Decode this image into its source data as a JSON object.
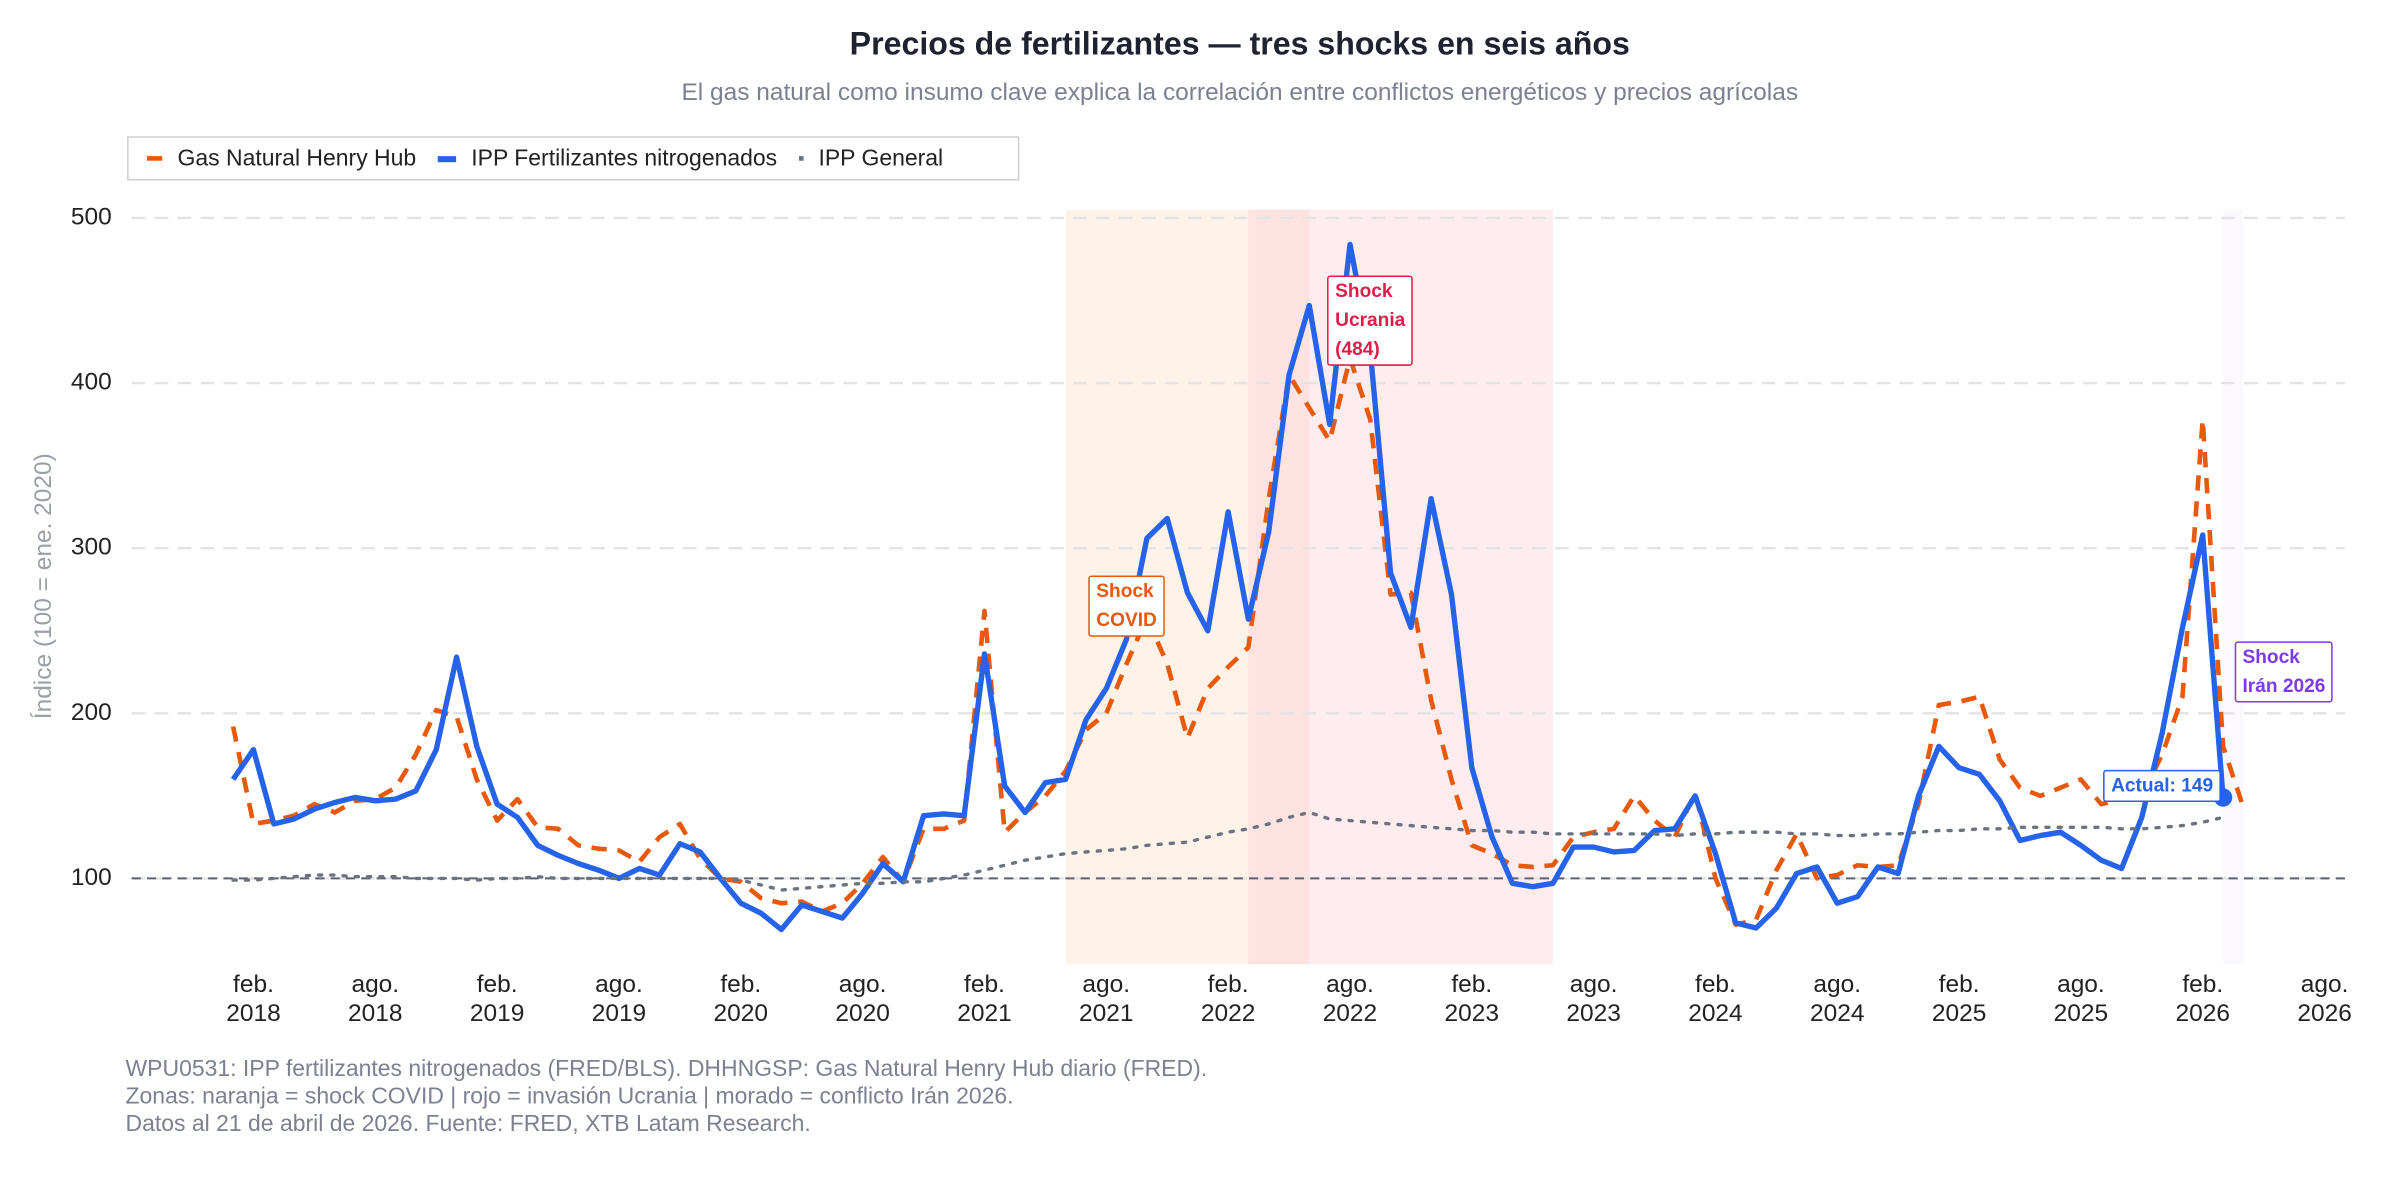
{
  "chart_data": {
    "type": "line",
    "title": "Precios de fertilizantes — tres shocks en seis años",
    "subtitle": "El gas natural como insumo clave explica la correlación entre conflictos energéticos y precios agrícolas",
    "y_label": "Índice (100 = ene. 2020)",
    "x": [
      "2018-01",
      "2018-02",
      "2018-03",
      "2018-04",
      "2018-05",
      "2018-06",
      "2018-07",
      "2018-08",
      "2018-09",
      "2018-10",
      "2018-11",
      "2018-12",
      "2019-01",
      "2019-02",
      "2019-03",
      "2019-04",
      "2019-05",
      "2019-06",
      "2019-07",
      "2019-08",
      "2019-09",
      "2019-10",
      "2019-11",
      "2019-12",
      "2020-01",
      "2020-02",
      "2020-03",
      "2020-04",
      "2020-05",
      "2020-06",
      "2020-07",
      "2020-08",
      "2020-09",
      "2020-10",
      "2020-11",
      "2020-12",
      "2021-01",
      "2021-02",
      "2021-03",
      "2021-04",
      "2021-05",
      "2021-06",
      "2021-07",
      "2021-08",
      "2021-09",
      "2021-10",
      "2021-11",
      "2021-12",
      "2022-01",
      "2022-02",
      "2022-03",
      "2022-04",
      "2022-05",
      "2022-06",
      "2022-07",
      "2022-08",
      "2022-09",
      "2022-10",
      "2022-11",
      "2022-12",
      "2023-01",
      "2023-02",
      "2023-03",
      "2023-04",
      "2023-05",
      "2023-06",
      "2023-07",
      "2023-08",
      "2023-09",
      "2023-10",
      "2023-11",
      "2023-12",
      "2024-01",
      "2024-02",
      "2024-03",
      "2024-04",
      "2024-05",
      "2024-06",
      "2024-07",
      "2024-08",
      "2024-09",
      "2024-10",
      "2024-11",
      "2024-12",
      "2025-01",
      "2025-02",
      "2025-03",
      "2025-04",
      "2025-05",
      "2025-06",
      "2025-07",
      "2025-08",
      "2025-09",
      "2025-10",
      "2025-11",
      "2025-12",
      "2026-01",
      "2026-02",
      "2026-03",
      "2026-04"
    ],
    "series": [
      {
        "name": "Gas Natural Henry Hub",
        "color": "#e8590c",
        "style": "dashed",
        "values": [
          192,
          133,
          135,
          138,
          145,
          140,
          147,
          148,
          155,
          175,
          202,
          198,
          160,
          135,
          148,
          131,
          130,
          120,
          118,
          117,
          110,
          125,
          133,
          112,
          100,
          98,
          88,
          85,
          86,
          80,
          85,
          97,
          113,
          98,
          130,
          130,
          135,
          262,
          128,
          140,
          150,
          165,
          190,
          200,
          230,
          258,
          230,
          185,
          215,
          228,
          240,
          330,
          405,
          385,
          365,
          415,
          378,
          272,
          273,
          208,
          160,
          120,
          115,
          108,
          107,
          108,
          125,
          128,
          130,
          150,
          135,
          125,
          152,
          100,
          72,
          75,
          105,
          127,
          100,
          102,
          108,
          107,
          108,
          145,
          205,
          207,
          210,
          172,
          155,
          150,
          155,
          160,
          145,
          148,
          150,
          175,
          210,
          378,
          180,
          143
        ]
      },
      {
        "name": "IPP Fertilizantes nitrogenados",
        "color": "#2563eb",
        "style": "solid",
        "end_marker": true,
        "values": [
          160,
          178,
          133,
          136,
          142,
          146,
          149,
          147,
          148,
          153,
          178,
          234,
          180,
          145,
          137,
          120,
          114,
          109,
          105,
          100,
          106,
          102,
          121,
          116,
          100,
          85,
          79,
          69,
          84,
          80,
          76,
          91,
          109,
          98,
          138,
          139,
          138,
          236,
          156,
          140,
          158,
          160,
          196,
          215,
          245,
          306,
          318,
          273,
          250,
          322,
          257,
          310,
          405,
          447,
          375,
          484,
          420,
          285,
          252,
          330,
          272,
          167,
          125,
          97,
          95,
          97,
          119,
          119,
          116,
          117,
          129,
          130,
          150,
          115,
          73,
          70,
          82,
          103,
          107,
          85,
          89,
          107,
          103,
          150,
          180,
          167,
          163,
          147,
          123,
          126,
          128,
          120,
          111,
          106,
          137,
          188,
          252,
          308,
          149,
          null
        ]
      },
      {
        "name": "IPP General",
        "color": "#6b7280",
        "style": "dotted",
        "values": [
          99,
          99,
          100,
          101,
          102,
          102,
          101,
          101,
          101,
          100,
          100,
          100,
          99,
          100,
          100,
          101,
          100,
          100,
          100,
          100,
          100,
          100,
          100,
          100,
          100,
          99,
          96,
          93,
          94,
          95,
          96,
          97,
          97,
          98,
          98,
          100,
          102,
          105,
          108,
          111,
          113,
          115,
          116,
          117,
          118,
          120,
          121,
          122,
          125,
          128,
          130,
          133,
          137,
          140,
          136,
          135,
          134,
          133,
          132,
          131,
          130,
          129,
          129,
          128,
          128,
          127,
          127,
          127,
          127,
          127,
          127,
          126,
          127,
          127,
          128,
          128,
          128,
          127,
          127,
          126,
          126,
          127,
          127,
          128,
          129,
          129,
          130,
          130,
          131,
          131,
          131,
          131,
          131,
          130,
          130,
          131,
          132,
          134,
          137,
          null
        ]
      }
    ],
    "xlim": [
      "2017-08",
      "2026-09"
    ],
    "xticks": [
      {
        "value": "2018-02",
        "label": "feb.\n2018"
      },
      {
        "value": "2018-08",
        "label": "ago.\n2018"
      },
      {
        "value": "2019-02",
        "label": "feb.\n2019"
      },
      {
        "value": "2019-08",
        "label": "ago.\n2019"
      },
      {
        "value": "2020-02",
        "label": "feb.\n2020"
      },
      {
        "value": "2020-08",
        "label": "ago.\n2020"
      },
      {
        "value": "2021-02",
        "label": "feb.\n2021"
      },
      {
        "value": "2021-08",
        "label": "ago.\n2021"
      },
      {
        "value": "2022-02",
        "label": "feb.\n2022"
      },
      {
        "value": "2022-08",
        "label": "ago.\n2022"
      },
      {
        "value": "2023-02",
        "label": "feb.\n2023"
      },
      {
        "value": "2023-08",
        "label": "ago.\n2023"
      },
      {
        "value": "2024-02",
        "label": "feb.\n2024"
      },
      {
        "value": "2024-08",
        "label": "ago.\n2024"
      },
      {
        "value": "2025-02",
        "label": "feb.\n2025"
      },
      {
        "value": "2025-08",
        "label": "ago.\n2025"
      },
      {
        "value": "2026-02",
        "label": "feb.\n2026"
      },
      {
        "value": "2026-08",
        "label": "ago.\n2026"
      }
    ],
    "ylim": [
      48,
      505
    ],
    "yticks": [
      100,
      200,
      300,
      400,
      500
    ],
    "grid": true,
    "reference_line": 100,
    "legend_position": "top-left",
    "zones": [
      {
        "start": "2021-06",
        "end": "2022-06",
        "color": "rgba(253,226,206,0.45)"
      },
      {
        "start": "2022-03",
        "end": "2023-06",
        "color": "rgba(255,200,210,0.35)"
      },
      {
        "start": "2026-03",
        "end": "2026-04",
        "color": "rgba(200,180,240,0.08)"
      }
    ],
    "annotations": [
      {
        "text": "Shock\nCOVID",
        "x": "2021-09",
        "y": 265,
        "color": "#e8590c"
      },
      {
        "text": "Shock\nUcrania\n(484)",
        "x": "2022-09",
        "y": 438,
        "color": "#e11d48"
      },
      {
        "text": "Actual: 149",
        "x": "2025-12",
        "y": 156,
        "color": "#2563eb"
      },
      {
        "text": "Shock\nIrán 2026",
        "x": "2026-06",
        "y": 225,
        "color": "#7c3aed"
      }
    ],
    "notes": [
      "WPU0531: IPP fertilizantes nitrogenados (FRED/BLS). DHHNGSP: Gas Natural Henry Hub diario (FRED).",
      "Zonas: naranja = shock COVID | rojo = invasión Ucrania | morado = conflicto Irán 2026.",
      "Datos al 21 de abril de 2026. Fuente: FRED, XTB Latam Research."
    ]
  }
}
